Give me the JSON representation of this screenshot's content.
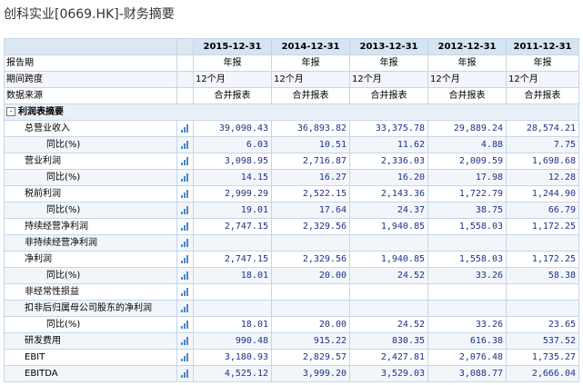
{
  "title": "创科实业[0669.HK]-财务摘要",
  "icon_name": "bar-chart-icon",
  "columns": [
    "2015-12-31",
    "2014-12-31",
    "2013-12-31",
    "2012-12-31",
    "2011-12-31"
  ],
  "info_rows": [
    {
      "label": "报告期",
      "values": [
        "年报",
        "年报",
        "年报",
        "年报",
        "年报"
      ],
      "align": "center"
    },
    {
      "label": "期间跨度",
      "values": [
        "12个月",
        "12个月",
        "12个月",
        "12个月",
        "12个月"
      ],
      "align": "left"
    },
    {
      "label": "数据来源",
      "values": [
        "合并报表",
        "合并报表",
        "合并报表",
        "合并报表",
        "合并报表"
      ],
      "align": "center"
    }
  ],
  "section": {
    "label": "利润表摘要",
    "toggle": "-"
  },
  "rows": [
    {
      "label": "总营业收入",
      "level": 1,
      "values": [
        "39,090.43",
        "36,893.82",
        "33,375.78",
        "29,889.24",
        "28,574.21"
      ]
    },
    {
      "label": "同比(%)",
      "level": 2,
      "values": [
        "6.03",
        "10.51",
        "11.62",
        "4.88",
        "7.75"
      ]
    },
    {
      "label": "营业利润",
      "level": 1,
      "values": [
        "3,098.95",
        "2,716.87",
        "2,336.03",
        "2,009.59",
        "1,698.68"
      ]
    },
    {
      "label": "同比(%)",
      "level": 2,
      "values": [
        "14.15",
        "16.27",
        "16.20",
        "17.98",
        "12.28"
      ]
    },
    {
      "label": "税前利润",
      "level": 1,
      "values": [
        "2,999.29",
        "2,522.15",
        "2,143.36",
        "1,722.79",
        "1,244.90"
      ]
    },
    {
      "label": "同比(%)",
      "level": 2,
      "values": [
        "19.01",
        "17.64",
        "24.37",
        "38.75",
        "66.79"
      ]
    },
    {
      "label": "持续经营净利润",
      "level": 1,
      "values": [
        "2,747.15",
        "2,329.56",
        "1,940.85",
        "1,558.03",
        "1,172.25"
      ]
    },
    {
      "label": "非持续经营净利润",
      "level": 1,
      "values": [
        "",
        "",
        "",
        "",
        ""
      ]
    },
    {
      "label": "净利润",
      "level": 1,
      "values": [
        "2,747.15",
        "2,329.56",
        "1,940.85",
        "1,558.03",
        "1,172.25"
      ]
    },
    {
      "label": "同比(%)",
      "level": 2,
      "values": [
        "18.01",
        "20.00",
        "24.52",
        "33.26",
        "58.38"
      ]
    },
    {
      "label": "非经常性损益",
      "level": 1,
      "values": [
        "",
        "",
        "",
        "",
        ""
      ]
    },
    {
      "label": "扣非后归属母公司股东的净利润",
      "level": 1,
      "values": [
        "",
        "",
        "",
        "",
        ""
      ]
    },
    {
      "label": "同比(%)",
      "level": 2,
      "values": [
        "18.01",
        "20.00",
        "24.52",
        "33.26",
        "23.65"
      ]
    },
    {
      "label": "研发费用",
      "level": 1,
      "values": [
        "990.48",
        "915.22",
        "830.35",
        "616.38",
        "537.52"
      ]
    },
    {
      "label": "EBIT",
      "level": 1,
      "values": [
        "3,180.93",
        "2,829.57",
        "2,427.81",
        "2,076.48",
        "1,735.27"
      ]
    },
    {
      "label": "EBITDA",
      "level": 1,
      "values": [
        "4,525.12",
        "3,999.20",
        "3,529.03",
        "3,088.77",
        "2,666.04"
      ]
    }
  ]
}
